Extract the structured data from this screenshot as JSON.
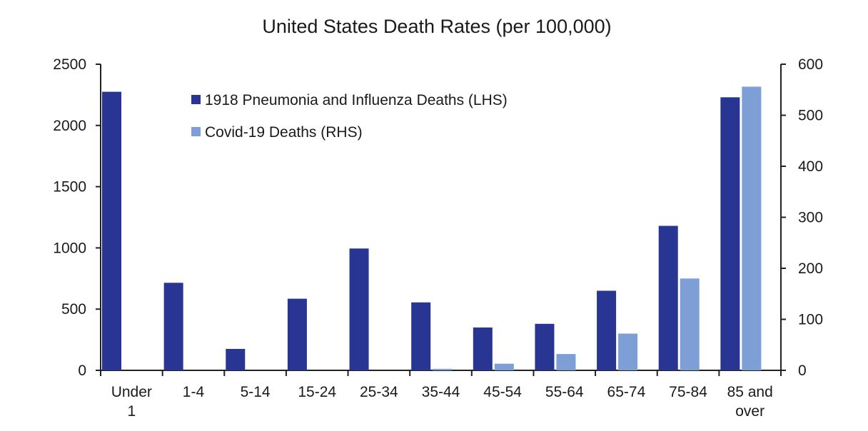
{
  "chart_data": {
    "type": "bar",
    "title": "United States Death Rates (per 100,000)",
    "categories": [
      [
        "Under",
        "1"
      ],
      [
        "1-4"
      ],
      [
        "5-14"
      ],
      [
        "15-24"
      ],
      [
        "25-34"
      ],
      [
        "35-44"
      ],
      [
        "45-54"
      ],
      [
        "55-64"
      ],
      [
        "65-74"
      ],
      [
        "75-84"
      ],
      [
        "85 and",
        "over"
      ]
    ],
    "left_axis": {
      "ylim": [
        0,
        2500
      ],
      "ticks": [
        "0",
        "500",
        "1000",
        "1500",
        "2000",
        "2500"
      ]
    },
    "right_axis": {
      "ylim": [
        0,
        600
      ],
      "ticks": [
        "0",
        "100",
        "200",
        "300",
        "400",
        "500",
        "600"
      ]
    },
    "series": [
      {
        "name": "1918 Pneumonia and Influenza Deaths (LHS)",
        "axis": "left",
        "color": "#283593",
        "values": [
          2275,
          715,
          175,
          585,
          995,
          555,
          350,
          380,
          650,
          1180,
          2230
        ]
      },
      {
        "name": "Covid-19 Deaths (RHS)",
        "axis": "right",
        "color": "#7e9fd6",
        "values": [
          0,
          0,
          0,
          0,
          0,
          3,
          13,
          32,
          72,
          180,
          556
        ]
      }
    ],
    "legend_position": "top-left",
    "grid": false
  }
}
